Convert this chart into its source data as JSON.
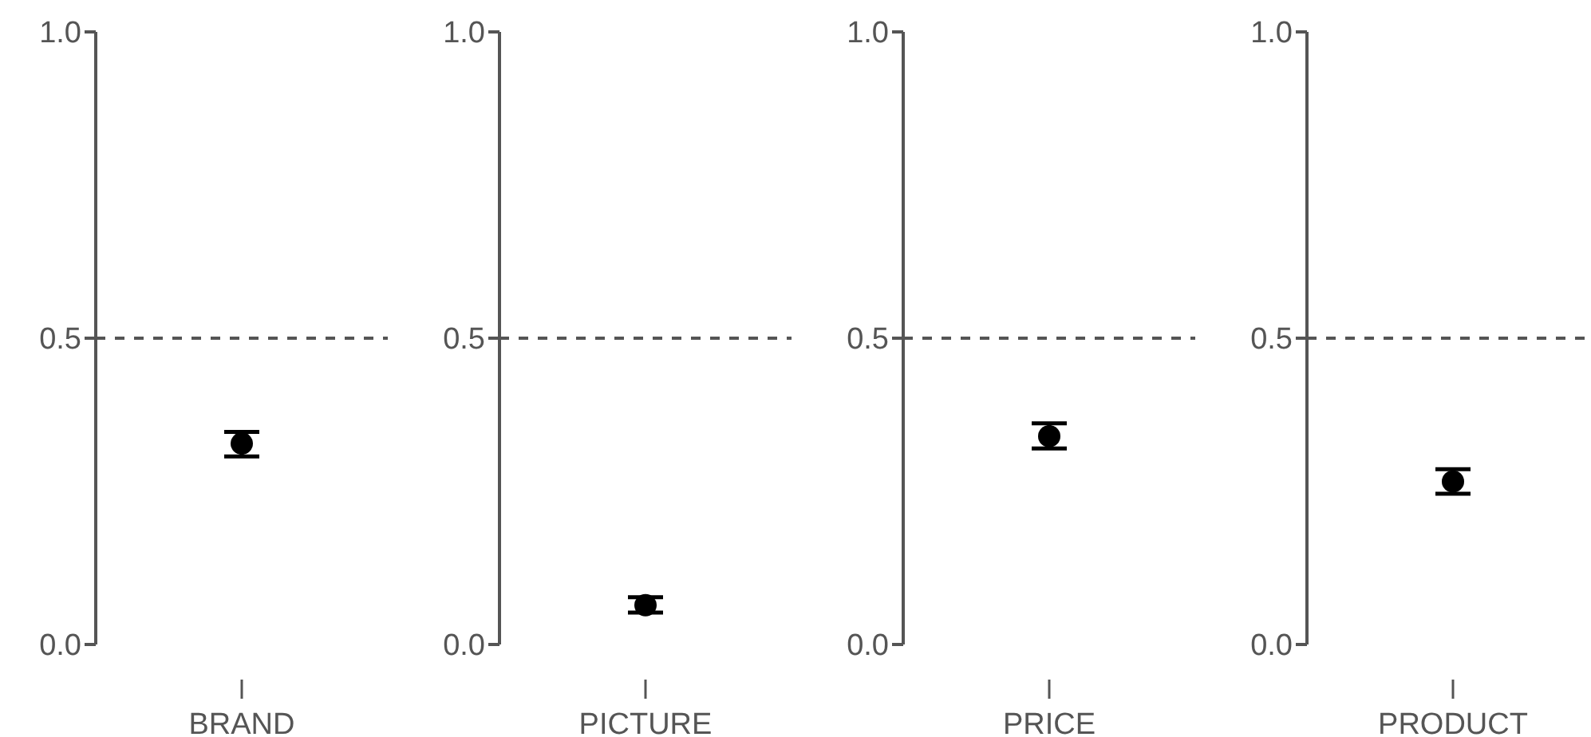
{
  "chart_data": [
    {
      "type": "scatter",
      "categories": [
        "BRAND"
      ],
      "values": [
        0.328
      ],
      "errors": [
        [
          0.307,
          0.347
        ]
      ],
      "color": "#000000",
      "marker": "circle",
      "ylim": [
        0,
        1
      ],
      "yticks": [
        {
          "value": 0,
          "label": "0.0"
        },
        {
          "value": 0.5,
          "label": "0.5"
        },
        {
          "value": 1,
          "label": "1.0"
        }
      ],
      "ref_lines": [
        {
          "axis": "y",
          "value": 0.5,
          "line_style": "dashed",
          "color": "#555555"
        }
      ]
    },
    {
      "type": "scatter",
      "categories": [
        "PICTURE"
      ],
      "values": [
        0.064
      ],
      "errors": [
        [
          0.052,
          0.077
        ]
      ],
      "color": "#000000",
      "marker": "circle",
      "ylim": [
        0,
        1
      ],
      "yticks": [
        {
          "value": 0,
          "label": "0.0"
        },
        {
          "value": 0.5,
          "label": "0.5"
        },
        {
          "value": 1,
          "label": "1.0"
        }
      ],
      "ref_lines": [
        {
          "axis": "y",
          "value": 0.5,
          "line_style": "dashed",
          "color": "#555555"
        }
      ]
    },
    {
      "type": "scatter",
      "categories": [
        "PRICE"
      ],
      "values": [
        0.34
      ],
      "errors": [
        [
          0.32,
          0.361
        ]
      ],
      "color": "#000000",
      "marker": "circle",
      "ylim": [
        0,
        1
      ],
      "yticks": [
        {
          "value": 0,
          "label": "0.0"
        },
        {
          "value": 0.5,
          "label": "0.5"
        },
        {
          "value": 1,
          "label": "1.0"
        }
      ],
      "ref_lines": [
        {
          "axis": "y",
          "value": 0.5,
          "line_style": "dashed",
          "color": "#555555"
        }
      ]
    },
    {
      "type": "scatter",
      "categories": [
        "PRODUCT"
      ],
      "values": [
        0.266
      ],
      "errors": [
        [
          0.246,
          0.286
        ]
      ],
      "color": "#000000",
      "marker": "circle",
      "ylim": [
        0,
        1
      ],
      "yticks": [
        {
          "value": 0,
          "label": "0.0"
        },
        {
          "value": 0.5,
          "label": "0.5"
        },
        {
          "value": 1,
          "label": "1.0"
        }
      ],
      "ref_lines": [
        {
          "axis": "y",
          "value": 0.5,
          "line_style": "dashed",
          "color": "#555555"
        }
      ]
    }
  ]
}
